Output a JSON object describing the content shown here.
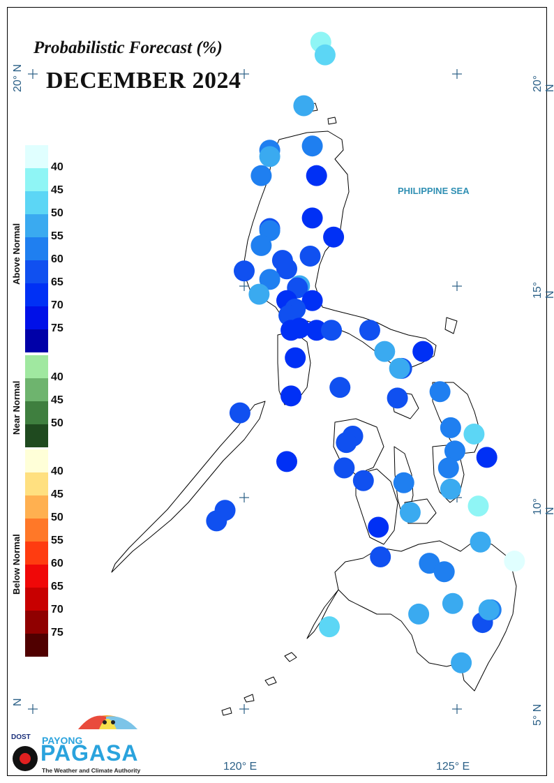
{
  "title": "Probabilistic Forecast (%)",
  "month": "DECEMBER 2024",
  "sea_label": "PHILIPPINE SEA",
  "coords": {
    "lat20_left": "20° N",
    "lat20_right": "20° N",
    "lat15_right": "15° N",
    "lat10_right": "10° N",
    "lat5_left": "N",
    "lat5_right": "5° N",
    "lon120": "120° E",
    "lon125": "125° E"
  },
  "legend": {
    "above": {
      "title": "Above Normal",
      "labels": [
        "40",
        "45",
        "50",
        "55",
        "60",
        "65",
        "70",
        "75"
      ],
      "colors": [
        "#e0ffff",
        "#8ff5f5",
        "#5cd6f5",
        "#3aaaf0",
        "#1f7ff0",
        "#1050f0",
        "#0030f5",
        "#0010e8",
        "#0000a8"
      ]
    },
    "near": {
      "title": "Near Normal",
      "labels": [
        "40",
        "45",
        "50"
      ],
      "colors": [
        "#a0e8a0",
        "#6eb46e",
        "#3f7f3f",
        "#1f4a1f"
      ]
    },
    "below": {
      "title": "Below Normal",
      "labels": [
        "40",
        "45",
        "50",
        "55",
        "60",
        "65",
        "70",
        "75"
      ],
      "colors": [
        "#ffffd8",
        "#ffe080",
        "#ffb050",
        "#ff7828",
        "#ff3c10",
        "#f00808",
        "#c80000",
        "#900000",
        "#500000"
      ]
    }
  },
  "stations": [
    {
      "lon": 121.8,
      "lat": 20.75,
      "color": "#8ff5f5"
    },
    {
      "lon": 121.9,
      "lat": 20.45,
      "color": "#5cd6f5"
    },
    {
      "lon": 121.4,
      "lat": 19.25,
      "color": "#3aaaf0"
    },
    {
      "lon": 121.6,
      "lat": 18.3,
      "color": "#1f7ff0"
    },
    {
      "lon": 120.6,
      "lat": 18.2,
      "color": "#1f7ff0"
    },
    {
      "lon": 120.6,
      "lat": 18.05,
      "color": "#3aaaf0"
    },
    {
      "lon": 121.7,
      "lat": 17.6,
      "color": "#0030f5"
    },
    {
      "lon": 120.4,
      "lat": 17.6,
      "color": "#1f7ff0"
    },
    {
      "lon": 121.6,
      "lat": 16.6,
      "color": "#0030f5"
    },
    {
      "lon": 122.1,
      "lat": 16.15,
      "color": "#0030f5"
    },
    {
      "lon": 120.6,
      "lat": 16.35,
      "color": "#1050f0"
    },
    {
      "lon": 120.6,
      "lat": 16.3,
      "color": "#1f7ff0"
    },
    {
      "lon": 120.4,
      "lat": 15.95,
      "color": "#1f7ff0"
    },
    {
      "lon": 121.55,
      "lat": 15.7,
      "color": "#1050f0"
    },
    {
      "lon": 120.9,
      "lat": 15.6,
      "color": "#1050f0"
    },
    {
      "lon": 121.0,
      "lat": 15.4,
      "color": "#1050f0"
    },
    {
      "lon": 120.0,
      "lat": 15.35,
      "color": "#1050f0"
    },
    {
      "lon": 120.6,
      "lat": 15.15,
      "color": "#1f7ff0"
    },
    {
      "lon": 121.3,
      "lat": 15.0,
      "color": "#3aaaf0"
    },
    {
      "lon": 121.25,
      "lat": 14.95,
      "color": "#1050f0"
    },
    {
      "lon": 120.35,
      "lat": 14.8,
      "color": "#3aaaf0"
    },
    {
      "lon": 121.0,
      "lat": 14.65,
      "color": "#0030f5"
    },
    {
      "lon": 121.6,
      "lat": 14.65,
      "color": "#0030f5"
    },
    {
      "lon": 121.2,
      "lat": 14.45,
      "color": "#1050f0"
    },
    {
      "lon": 121.05,
      "lat": 14.3,
      "color": "#1050f0"
    },
    {
      "lon": 121.1,
      "lat": 13.95,
      "color": "#0030f5"
    },
    {
      "lon": 121.3,
      "lat": 14.0,
      "color": "#0030f5"
    },
    {
      "lon": 121.7,
      "lat": 13.95,
      "color": "#0030f5"
    },
    {
      "lon": 122.05,
      "lat": 13.95,
      "color": "#1050f0"
    },
    {
      "lon": 122.95,
      "lat": 13.95,
      "color": "#1050f0"
    },
    {
      "lon": 123.3,
      "lat": 13.45,
      "color": "#3aaaf0"
    },
    {
      "lon": 124.2,
      "lat": 13.45,
      "color": "#0030f5"
    },
    {
      "lon": 121.2,
      "lat": 13.3,
      "color": "#0030f5"
    },
    {
      "lon": 123.7,
      "lat": 13.05,
      "color": "#1050f0"
    },
    {
      "lon": 123.65,
      "lat": 13.05,
      "color": "#3aaaf0"
    },
    {
      "lon": 122.25,
      "lat": 12.6,
      "color": "#1050f0"
    },
    {
      "lon": 121.1,
      "lat": 12.4,
      "color": "#0030f5"
    },
    {
      "lon": 123.6,
      "lat": 12.35,
      "color": "#1050f0"
    },
    {
      "lon": 124.6,
      "lat": 12.5,
      "color": "#1f7ff0"
    },
    {
      "lon": 119.9,
      "lat": 12.0,
      "color": "#1050f0"
    },
    {
      "lon": 124.85,
      "lat": 11.65,
      "color": "#1f7ff0"
    },
    {
      "lon": 125.4,
      "lat": 11.5,
      "color": "#5cd6f5"
    },
    {
      "lon": 122.55,
      "lat": 11.45,
      "color": "#1050f0"
    },
    {
      "lon": 122.4,
      "lat": 11.3,
      "color": "#1050f0"
    },
    {
      "lon": 124.95,
      "lat": 11.1,
      "color": "#1f7ff0"
    },
    {
      "lon": 125.7,
      "lat": 10.95,
      "color": "#0030f5"
    },
    {
      "lon": 121.0,
      "lat": 10.85,
      "color": "#0030f5"
    },
    {
      "lon": 122.35,
      "lat": 10.7,
      "color": "#1050f0"
    },
    {
      "lon": 124.8,
      "lat": 10.7,
      "color": "#1f7ff0"
    },
    {
      "lon": 122.8,
      "lat": 10.4,
      "color": "#1050f0"
    },
    {
      "lon": 123.75,
      "lat": 10.35,
      "color": "#1f7ff0"
    },
    {
      "lon": 124.85,
      "lat": 10.2,
      "color": "#3aaaf0"
    },
    {
      "lon": 119.55,
      "lat": 9.7,
      "color": "#1050f0"
    },
    {
      "lon": 119.35,
      "lat": 9.45,
      "color": "#1050f0"
    },
    {
      "lon": 125.5,
      "lat": 9.8,
      "color": "#8ff5f5"
    },
    {
      "lon": 123.9,
      "lat": 9.65,
      "color": "#3aaaf0"
    },
    {
      "lon": 123.15,
      "lat": 9.3,
      "color": "#0030f5"
    },
    {
      "lon": 125.55,
      "lat": 8.95,
      "color": "#3aaaf0"
    },
    {
      "lon": 126.35,
      "lat": 8.5,
      "color": "#e0ffff"
    },
    {
      "lon": 123.2,
      "lat": 8.6,
      "color": "#1050f0"
    },
    {
      "lon": 124.35,
      "lat": 8.45,
      "color": "#1f7ff0"
    },
    {
      "lon": 124.7,
      "lat": 8.25,
      "color": "#1f7ff0"
    },
    {
      "lon": 124.9,
      "lat": 7.5,
      "color": "#3aaaf0"
    },
    {
      "lon": 125.8,
      "lat": 7.35,
      "color": "#1f7ff0"
    },
    {
      "lon": 124.1,
      "lat": 7.25,
      "color": "#3aaaf0"
    },
    {
      "lon": 125.6,
      "lat": 7.05,
      "color": "#1050f0"
    },
    {
      "lon": 125.75,
      "lat": 7.35,
      "color": "#3aaaf0"
    },
    {
      "lon": 122.0,
      "lat": 6.95,
      "color": "#5cd6f5"
    },
    {
      "lon": 125.1,
      "lat": 6.1,
      "color": "#3aaaf0"
    }
  ],
  "logo": {
    "dost": "DOST",
    "payong": "PAYONG",
    "pagasa": "PAGASA",
    "tagline": "The Weather and Climate Authority"
  }
}
